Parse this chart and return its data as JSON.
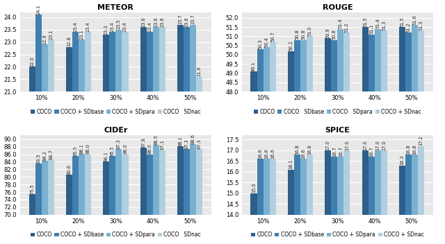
{
  "meteor": {
    "title": "METEOR",
    "categories": [
      "10%",
      "20%",
      "30%",
      "40%",
      "50%"
    ],
    "series": {
      "COCO": [
        22.0,
        22.8,
        23.3,
        23.6,
        23.7
      ],
      "COCO + SDbase": [
        24.1,
        23.4,
        23.4,
        23.4,
        23.6
      ],
      "COCO + SDpara": [
        22.9,
        23.1,
        23.5,
        23.6,
        23.7
      ],
      "COCO   SDnac": [
        23.1,
        23.4,
        23.4,
        23.6,
        21.6
      ]
    },
    "ylim": [
      21.0,
      24.2
    ],
    "yticks": [
      21.0,
      21.5,
      22.0,
      22.5,
      23.0,
      23.5,
      24.0
    ],
    "legend": [
      "COCO",
      "COCO + SDbase",
      "COCO + SDpara",
      "COCO   SDnac"
    ]
  },
  "rouge": {
    "title": "ROUGE",
    "categories": [
      "10%",
      "20%",
      "30%",
      "40%",
      "50%"
    ],
    "series": {
      "COCO": [
        49.1,
        50.2,
        50.9,
        51.5,
        51.5
      ],
      "COCO   SDbase": [
        50.3,
        50.8,
        50.8,
        51.1,
        51.2
      ],
      "COCO   SDpara": [
        50.4,
        50.8,
        51.4,
        51.4,
        51.6
      ],
      "COCO + SDnac": [
        50.7,
        51.0,
        51.2,
        51.3,
        51.3
      ]
    },
    "ylim": [
      48.0,
      52.3
    ],
    "yticks": [
      48.0,
      48.5,
      49.0,
      49.5,
      50.0,
      50.5,
      51.0,
      51.5,
      52.0
    ],
    "legend": [
      "COCO",
      "COCO   SDbase",
      "COCO   SDpara",
      "COCO + SDnac"
    ]
  },
  "cider": {
    "title": "CIDEr",
    "categories": [
      "10%",
      "20%",
      "30%",
      "40%",
      "50%"
    ],
    "series": {
      "COCO": [
        75.5,
        80.6,
        84.1,
        87.8,
        88.1
      ],
      "COCO + SDbase": [
        83.5,
        85.5,
        85.5,
        86.0,
        87.3
      ],
      "COCO + SDpara": [
        84.2,
        86.1,
        87.3,
        88.5,
        88.6
      ],
      "COCO   SDnac": [
        84.7,
        86.0,
        86.0,
        87.1,
        87.3
      ]
    },
    "ylim": [
      70.0,
      91.0
    ],
    "yticks": [
      70.0,
      72.0,
      74.0,
      76.0,
      78.0,
      80.0,
      82.0,
      84.0,
      86.0,
      88.0,
      90.0
    ],
    "legend": [
      "COCO",
      "COCO + SDbase",
      "COCO + SDpara",
      "COCO   SDnac"
    ]
  },
  "spice": {
    "title": "SPICE",
    "categories": [
      "10%",
      "20%",
      "30%",
      "40%",
      "50%"
    ],
    "series": {
      "COCO": [
        15.0,
        16.1,
        17.0,
        17.0,
        16.3
      ],
      "COCO + SDbase": [
        16.6,
        16.8,
        16.7,
        16.7,
        16.8
      ],
      "COCO + SDpara": [
        16.6,
        16.6,
        16.7,
        17.0,
        16.8
      ],
      "COCO + SDnac": [
        16.6,
        16.8,
        17.0,
        17.0,
        17.2
      ]
    },
    "ylim": [
      14.0,
      17.7
    ],
    "yticks": [
      14.0,
      14.5,
      15.0,
      15.5,
      16.0,
      16.5,
      17.0,
      17.5
    ],
    "legend": [
      "COCO",
      "COCO + SDbase",
      "COCO + SDpara",
      "COCO + SDnac"
    ]
  },
  "colors": [
    "#2e5f8a",
    "#4080b0",
    "#7ab0cf",
    "#b0cfe0"
  ],
  "bar_width": 0.17,
  "background_color": "#ffffff",
  "plot_bg_color": "#e8e8e8",
  "title_fontsize": 8,
  "label_fontsize": 5.5,
  "tick_fontsize": 6,
  "value_fontsize": 4.8
}
